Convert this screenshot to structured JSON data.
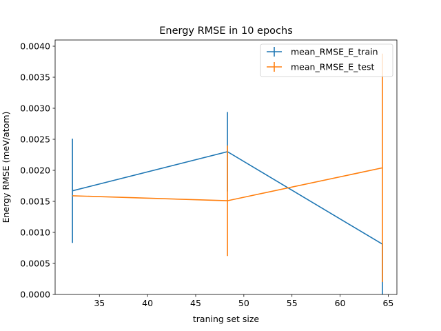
{
  "chart_data": {
    "type": "line",
    "title": "Energy RMSE in 10 epochs",
    "xlabel": "traning set size",
    "ylabel": "Energy RMSE (meV/atom)",
    "xlim": [
      30.4,
      65.9
    ],
    "ylim": [
      0.0,
      0.0041
    ],
    "xticks": [
      35,
      40,
      45,
      50,
      55,
      60,
      65
    ],
    "xtick_labels": [
      "35",
      "40",
      "45",
      "50",
      "55",
      "60",
      "65"
    ],
    "yticks": [
      0.0,
      0.0005,
      0.001,
      0.0015,
      0.002,
      0.0025,
      0.003,
      0.0035,
      0.004
    ],
    "ytick_labels": [
      "0.0000",
      "0.0005",
      "0.0010",
      "0.0015",
      "0.0020",
      "0.0025",
      "0.0030",
      "0.0035",
      "0.0040"
    ],
    "grid": false,
    "legend_position": "top-right",
    "error_bars": true,
    "series": [
      {
        "name": "mean_RMSE_E_train",
        "color": "#1f77b4",
        "x": [
          32.2,
          48.3,
          64.4
        ],
        "y": [
          0.00167,
          0.0023,
          0.00081
        ],
        "yerr_low": [
          0.00083,
          0.00166,
          0.0
        ],
        "yerr_high": [
          0.00251,
          0.00294,
          0.00081
        ]
      },
      {
        "name": "mean_RMSE_E_test",
        "color": "#ff7f0e",
        "x": [
          32.2,
          48.3,
          64.4
        ],
        "y": [
          0.00159,
          0.00151,
          0.00204
        ],
        "yerr_low": [
          0.00159,
          0.00062,
          0.0002
        ],
        "yerr_high": [
          0.00159,
          0.0024,
          0.00388
        ]
      }
    ]
  }
}
